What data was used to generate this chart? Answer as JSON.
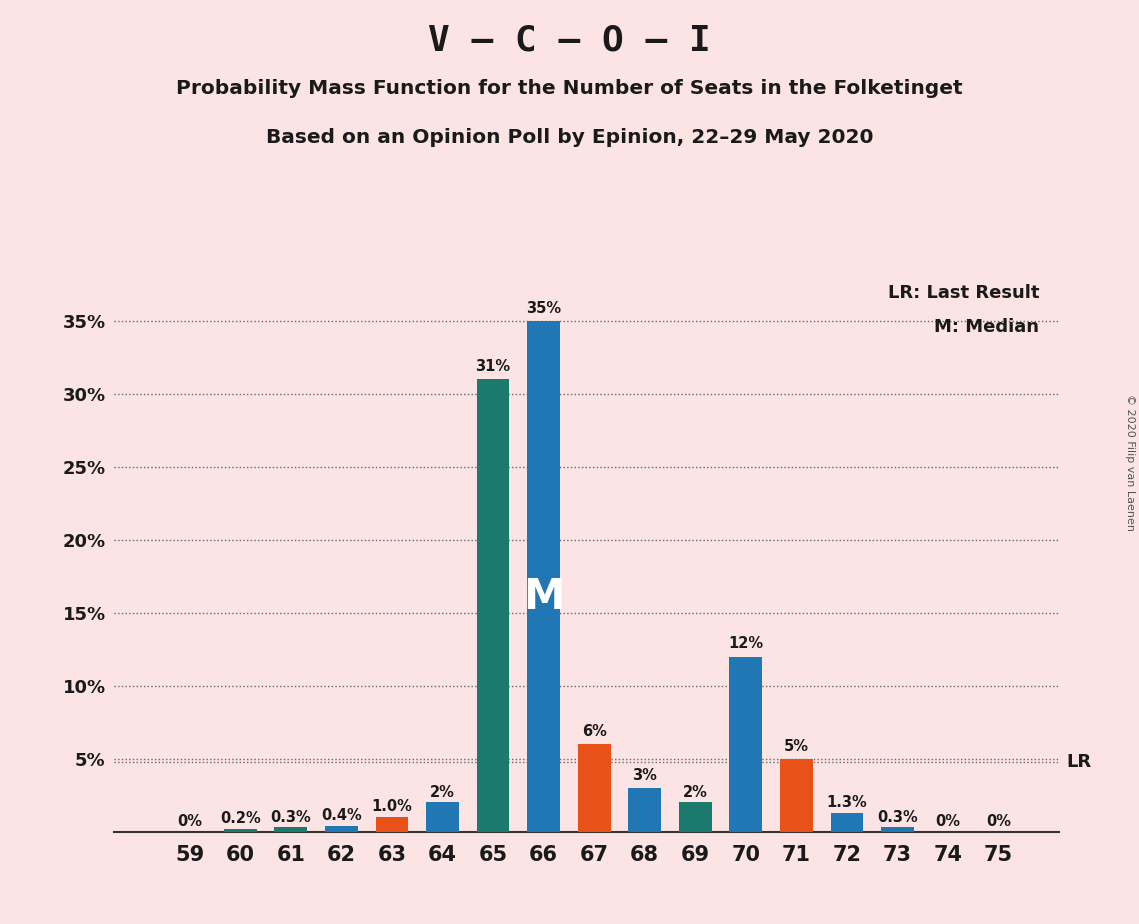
{
  "title1": "V – C – O – I",
  "title2": "Probability Mass Function for the Number of Seats in the Folketinget",
  "title3": "Based on an Opinion Poll by Epinion, 22–29 May 2020",
  "copyright": "© 2020 Filip van Laenen",
  "seats": [
    59,
    60,
    61,
    62,
    63,
    64,
    65,
    66,
    67,
    68,
    69,
    70,
    71,
    72,
    73,
    74,
    75
  ],
  "values": [
    0.0,
    0.2,
    0.3,
    0.4,
    1.0,
    2.0,
    31.0,
    35.0,
    6.0,
    3.0,
    2.0,
    12.0,
    5.0,
    1.3,
    0.3,
    0.0,
    0.0
  ],
  "labels": [
    "0%",
    "0.2%",
    "0.3%",
    "0.4%",
    "1.0%",
    "2%",
    "31%",
    "35%",
    "6%",
    "3%",
    "2%",
    "12%",
    "5%",
    "1.3%",
    "0.3%",
    "0%",
    "0%"
  ],
  "colors": [
    "#2077b4",
    "#1a7a6e",
    "#1a7a6e",
    "#2077b4",
    "#e8521a",
    "#2077b4",
    "#1a7a6e",
    "#2077b4",
    "#e8521a",
    "#2077b4",
    "#1a7a6e",
    "#2077b4",
    "#e8521a",
    "#2077b4",
    "#2077b4",
    "#2077b4",
    "#2077b4"
  ],
  "median_seat": 66,
  "lr_value": 4.8,
  "ylim": [
    0,
    38
  ],
  "yticks": [
    0,
    5,
    10,
    15,
    20,
    25,
    30,
    35
  ],
  "ytick_labels": [
    "",
    "5%",
    "10%",
    "15%",
    "20%",
    "25%",
    "30%",
    "35%"
  ],
  "background_color": "#fce4e4",
  "lr_label": "LR: Last Result",
  "median_label": "M: Median",
  "median_text": "M",
  "bar_width": 0.65
}
